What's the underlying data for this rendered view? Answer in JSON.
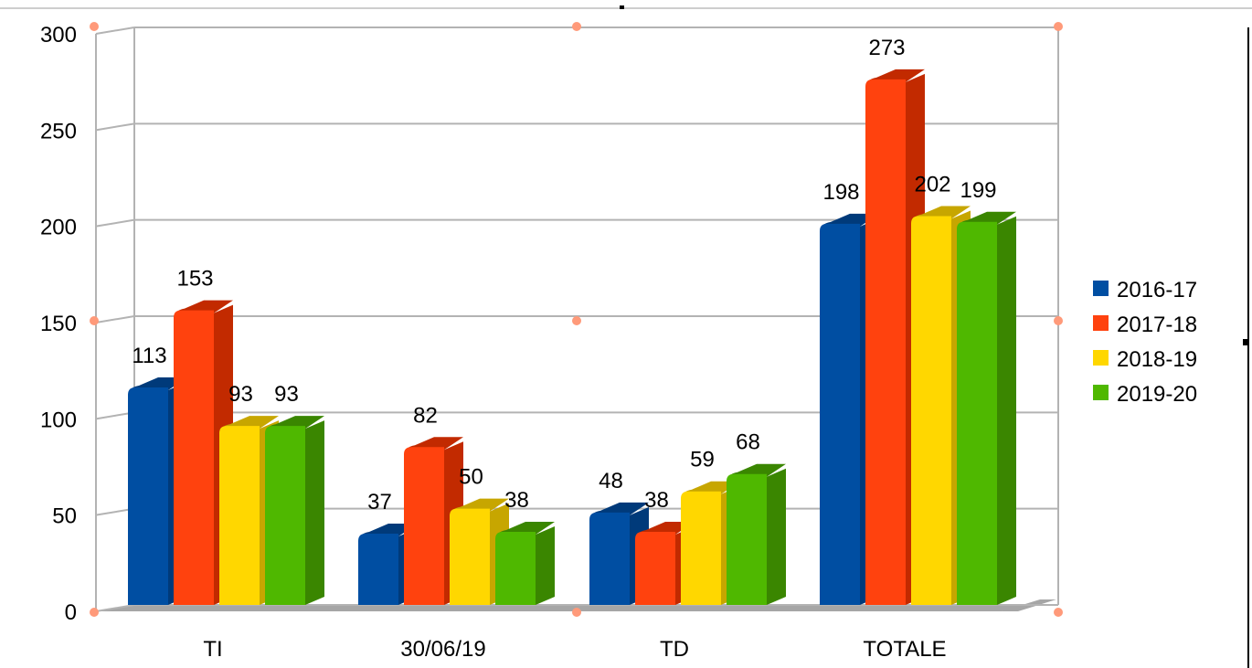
{
  "chart_data": {
    "type": "bar",
    "title": "",
    "xlabel": "",
    "ylabel": "",
    "ylim": [
      0,
      300
    ],
    "yticks": [
      0,
      50,
      100,
      150,
      200,
      250,
      300
    ],
    "grid": true,
    "legend_position": "right",
    "categories": [
      "TI",
      "30/06/19",
      "TD",
      "TOTALE"
    ],
    "series": [
      {
        "name": "2016-17",
        "color": "#004ea2",
        "side_color": "#003a7a",
        "values": [
          113,
          37,
          48,
          198
        ]
      },
      {
        "name": "2017-18",
        "color": "#ff420e",
        "side_color": "#c22a00",
        "values": [
          153,
          82,
          38,
          273
        ]
      },
      {
        "name": "2018-19",
        "color": "#ffd700",
        "side_color": "#c7a600",
        "values": [
          93,
          50,
          59,
          202
        ]
      },
      {
        "name": "2019-20",
        "color": "#4fb800",
        "side_color": "#3a8600",
        "values": [
          93,
          38,
          68,
          199
        ]
      }
    ]
  }
}
